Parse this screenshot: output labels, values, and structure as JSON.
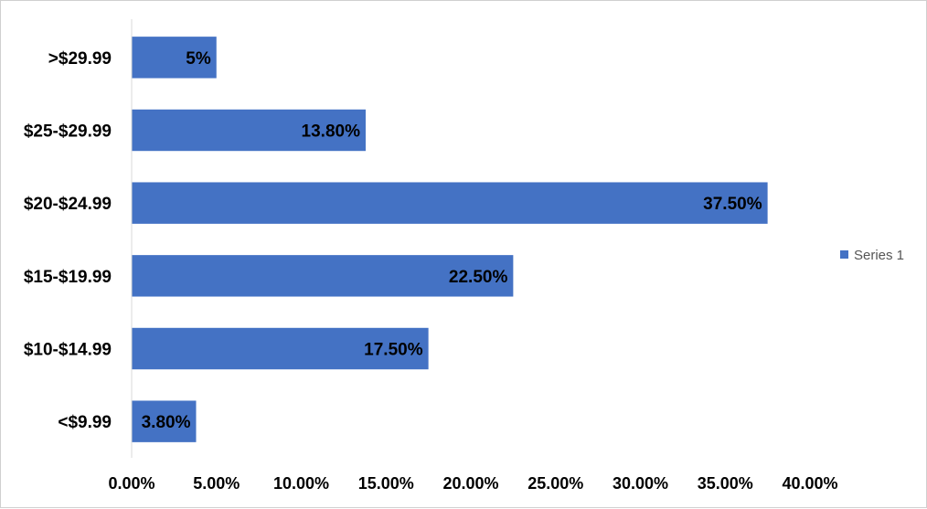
{
  "chart_data": {
    "type": "bar",
    "orientation": "horizontal",
    "categories": [
      ">$29.99",
      "$25-$29.99",
      "$20-$24.99",
      "$15-$19.99",
      "$10-$14.99",
      "<$9.99"
    ],
    "series": [
      {
        "name": "Series 1",
        "values": [
          5,
          13.8,
          37.5,
          22.5,
          17.5,
          3.8
        ],
        "data_labels": [
          "5%",
          "13.80%",
          "37.50%",
          "22.50%",
          "17.50%",
          "3.80%"
        ],
        "color": "#4472C4"
      }
    ],
    "x_ticks": [
      "0.00%",
      "5.00%",
      "10.00%",
      "15.00%",
      "20.00%",
      "25.00%",
      "30.00%",
      "35.00%",
      "40.00%"
    ],
    "xlim": [
      0,
      40
    ],
    "grid": false,
    "legend": {
      "position": "right",
      "entries": [
        "Series 1"
      ]
    }
  }
}
